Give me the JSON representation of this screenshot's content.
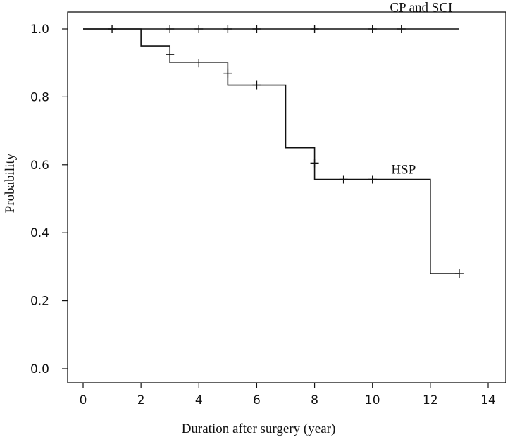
{
  "chart_data": {
    "type": "line",
    "subtype": "kaplan-meier step",
    "title": "",
    "xlabel": "Duration after surgery (year)",
    "ylabel": "Probability",
    "xlim": [
      0,
      14
    ],
    "ylim": [
      0,
      1
    ],
    "x_ticks": [
      0,
      2,
      4,
      6,
      8,
      10,
      12,
      14
    ],
    "y_ticks": [
      0.0,
      0.2,
      0.4,
      0.6,
      0.8,
      1.0
    ],
    "y_tick_labels": [
      "0.0",
      "0.2",
      "0.4",
      "0.6",
      "0.8",
      "1.0"
    ],
    "grid": false,
    "series": [
      {
        "name": "CP and SCI",
        "label_text": "CP and SCI",
        "step_x": [
          0,
          13
        ],
        "step_y": [
          1.0,
          1.0
        ],
        "censor_x": [
          1,
          3,
          4,
          5,
          6,
          8,
          10,
          11
        ],
        "censor_y": [
          1.0,
          1.0,
          1.0,
          1.0,
          1.0,
          1.0,
          1.0,
          1.0
        ]
      },
      {
        "name": "HSP",
        "label_text": "HSP",
        "step_x": [
          0,
          2,
          3,
          5,
          7,
          8,
          12,
          13
        ],
        "step_y": [
          1.0,
          0.95,
          0.9,
          0.835,
          0.65,
          0.557,
          0.28,
          0.28
        ],
        "censor_x": [
          3,
          4,
          5,
          6,
          8,
          9,
          10,
          13
        ],
        "censor_y": [
          0.925,
          0.9,
          0.87,
          0.835,
          0.605,
          0.557,
          0.557,
          0.28
        ]
      }
    ]
  }
}
